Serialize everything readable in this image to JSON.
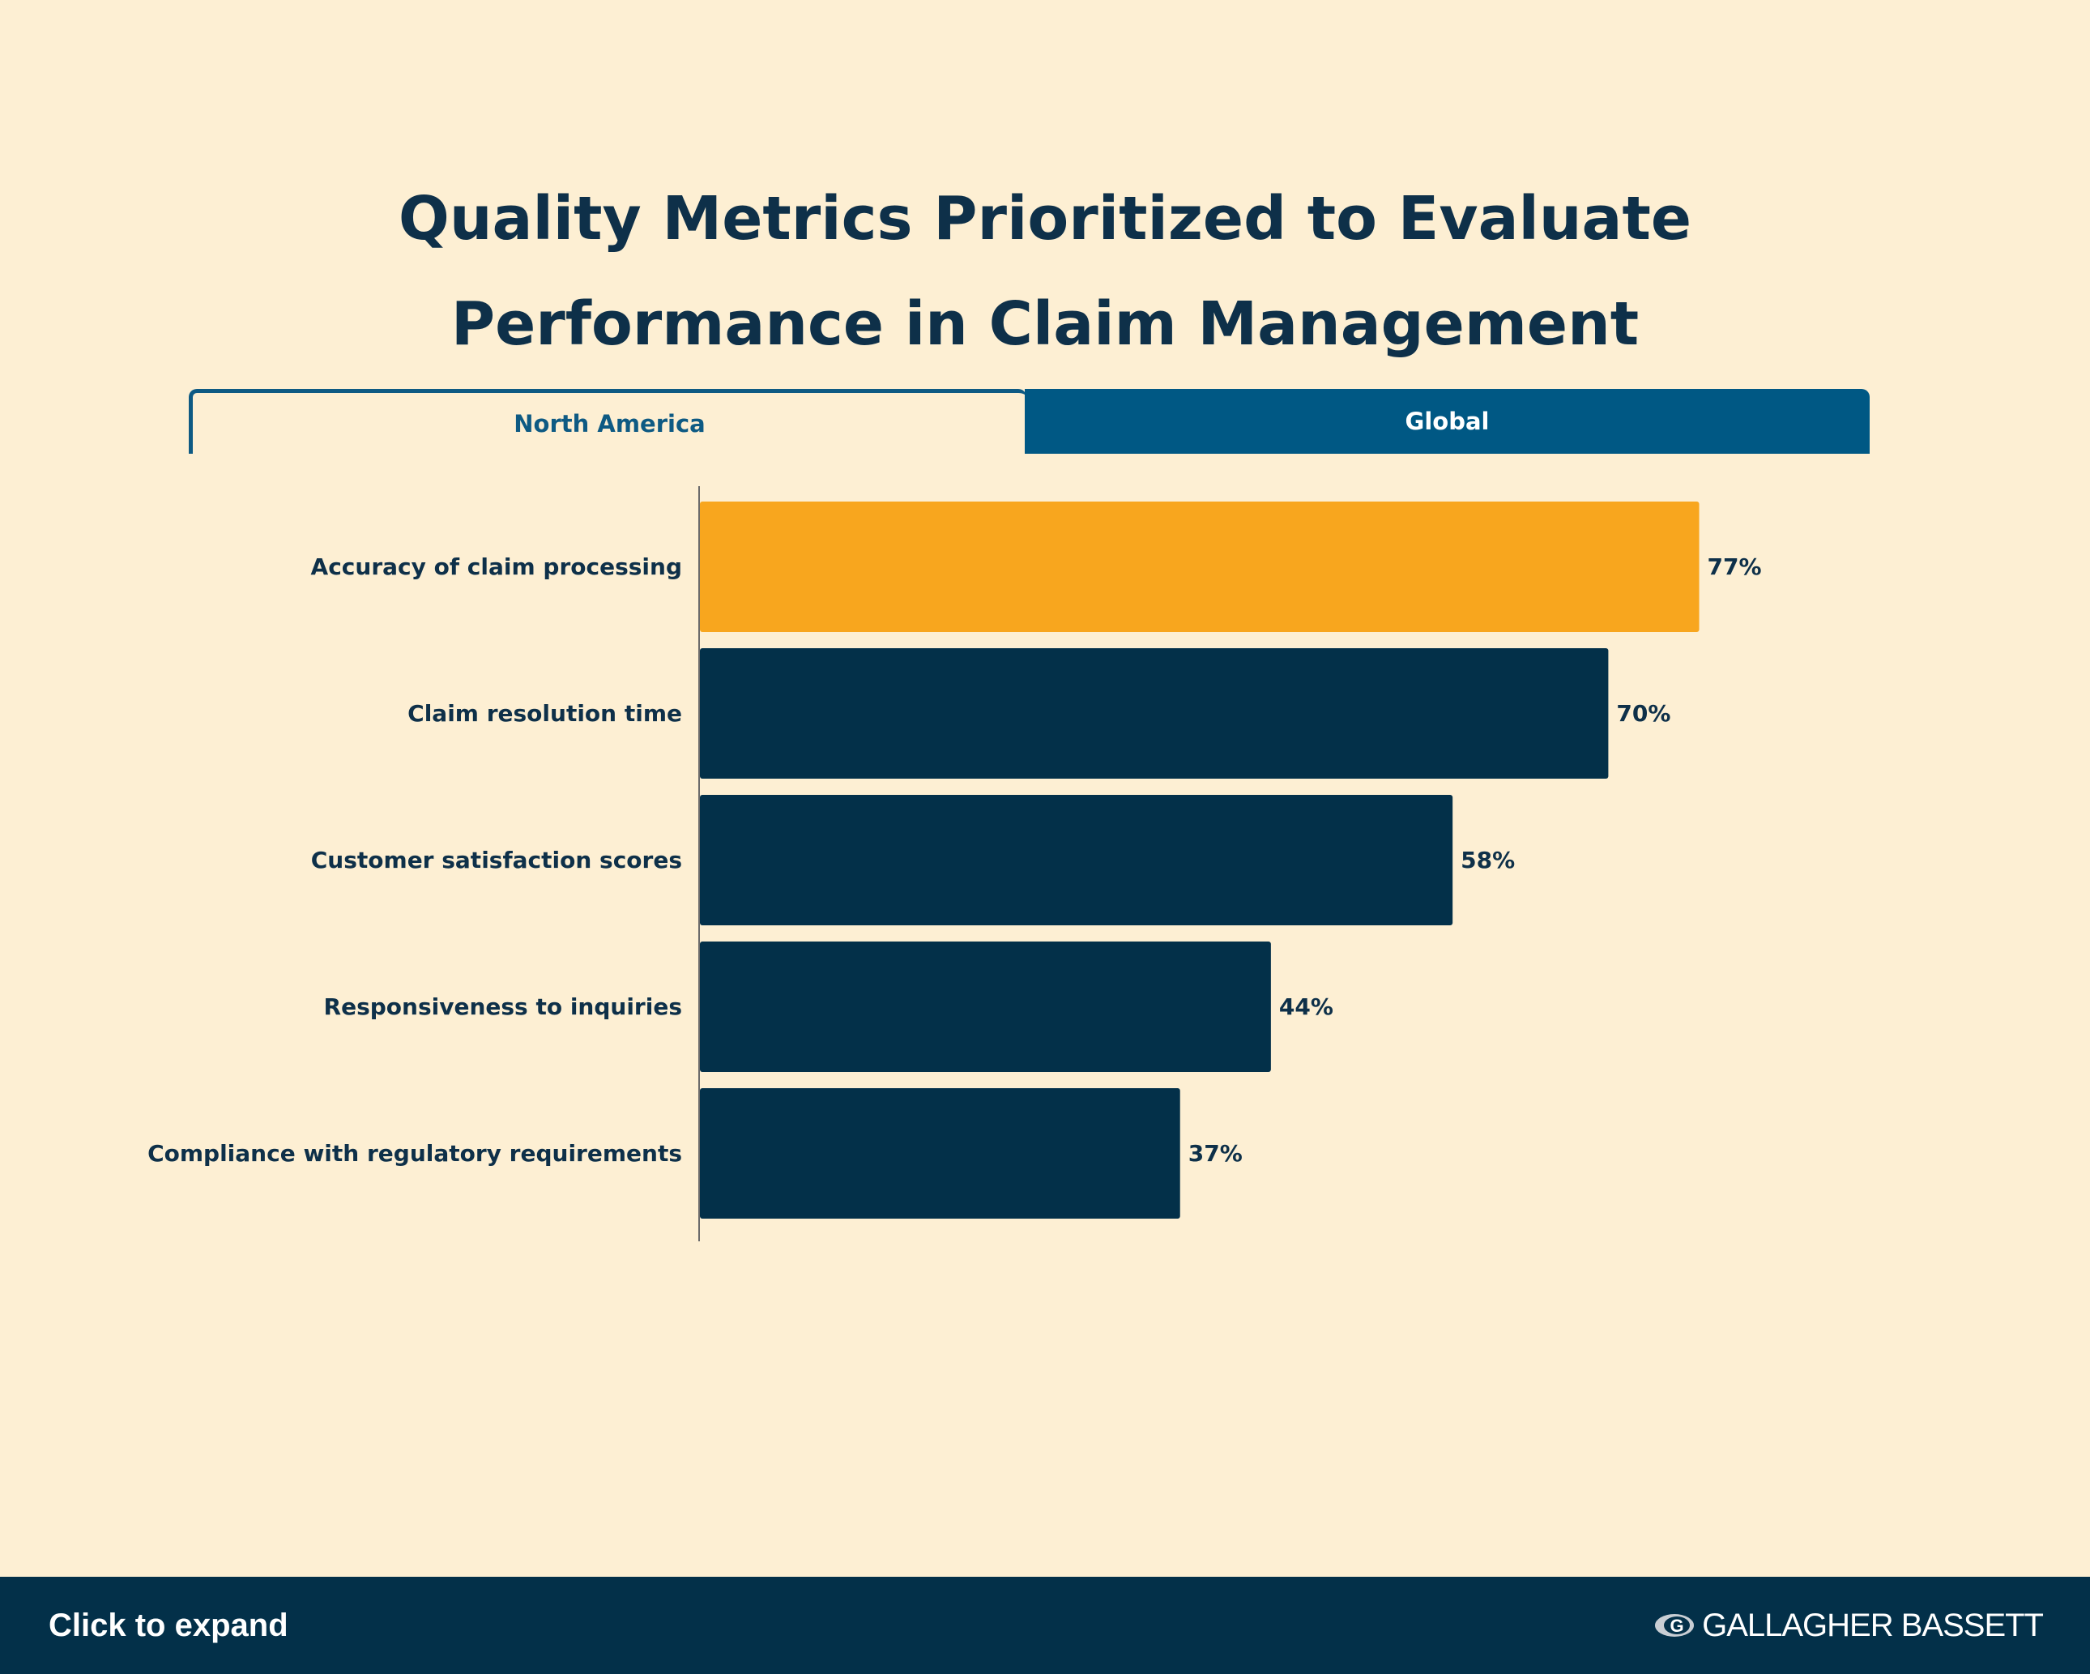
{
  "title_line1": "Quality Metrics Prioritized to Evaluate",
  "title_line2": "Performance in Claim Management",
  "tabs": [
    {
      "label": "North America",
      "active": true
    },
    {
      "label": "Global",
      "active": false
    }
  ],
  "footer": {
    "expand_label": "Click to expand",
    "brand_logo": "GALLAGHER BASSETT"
  },
  "colors": {
    "highlight": "#F8A61E",
    "bar": "#033049",
    "text": "#0E3049",
    "background": "#FDEFD3",
    "tab_accent": "#005884"
  },
  "chart_data": {
    "type": "bar",
    "orientation": "horizontal",
    "categories": [
      "Accuracy of claim processing",
      "Claim resolution time",
      "Customer satisfaction scores",
      "Responsiveness to inquiries",
      "Compliance with regulatory requirements"
    ],
    "values": [
      77,
      70,
      58,
      44,
      37
    ],
    "value_labels": [
      "77%",
      "70%",
      "58%",
      "44%",
      "37%"
    ],
    "highlighted_index": 0,
    "xlim": [
      0,
      100
    ],
    "grid": false,
    "title": "Quality Metrics Prioritized to Evaluate Performance in Claim Management"
  }
}
